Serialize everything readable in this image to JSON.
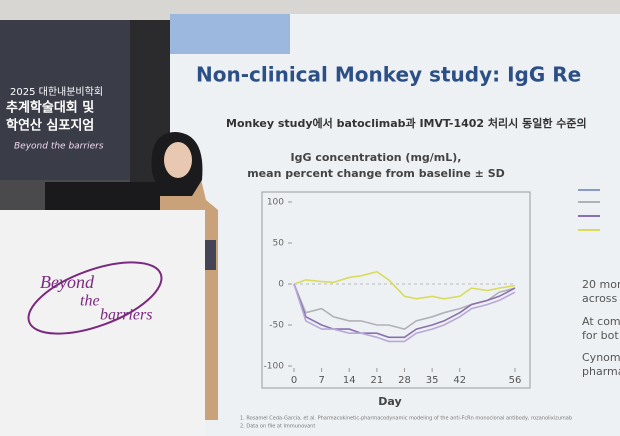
{
  "banner": {
    "lines": [
      "2025 대한내분비학회",
      "추계학술대회 및",
      "학연산 심포지엄"
    ],
    "tagline": "Beyond the barriers"
  },
  "podium": {
    "lines": [
      "Beyond",
      "the",
      "barriers"
    ]
  },
  "slide": {
    "title": "Non-clinical Monkey study: IgG Re",
    "subtitle": "Monkey study에서 batoclimab과 IMVT-1402 처리시 동일한 수준의",
    "chart": {
      "type": "line",
      "title": [
        "IgG concentration (mg/mL),",
        "mean percent change from baseline ± SD"
      ],
      "x_label": "Day",
      "x": [
        0,
        3,
        7,
        10,
        14,
        17,
        21,
        24,
        28,
        31,
        35,
        38,
        42,
        45,
        49,
        52,
        56
      ],
      "xlim": [
        0,
        56
      ],
      "xticks": [
        0,
        7,
        14,
        21,
        28,
        35,
        42,
        56
      ],
      "ylim": [
        -100,
        100
      ],
      "yticks": [
        -100,
        -50,
        0,
        50,
        100
      ],
      "series": [
        {
          "color": "#d8dc5a",
          "values": [
            0,
            5,
            3,
            2,
            8,
            10,
            15,
            5,
            -15,
            -18,
            -15,
            -18,
            -15,
            -5,
            -8,
            -5,
            -2
          ]
        },
        {
          "color": "#b0b0b8",
          "values": [
            0,
            -35,
            -30,
            -40,
            -45,
            -45,
            -50,
            -50,
            -55,
            -45,
            -40,
            -35,
            -30,
            -25,
            -20,
            -10,
            -5
          ]
        },
        {
          "color": "#8a70b0",
          "values": [
            0,
            -40,
            -50,
            -55,
            -55,
            -60,
            -60,
            -65,
            -65,
            -55,
            -50,
            -45,
            -35,
            -25,
            -20,
            -15,
            -5
          ]
        },
        {
          "color": "#b8a8d8",
          "values": [
            0,
            -45,
            -55,
            -55,
            -60,
            -60,
            -65,
            -70,
            -70,
            -60,
            -55,
            -50,
            -40,
            -30,
            -25,
            -20,
            -10
          ]
        }
      ]
    },
    "bullets": [
      "20 mon",
      "across",
      "At com",
      "for bot",
      "Cynom",
      "pharma"
    ],
    "footnotes": [
      "1. Rosamel Ceda-Garcia, et al. Pharmacokinetic-pharmacodynamic modeling of the anti-FcRn monoclonal antibody, rozanolixizumab",
      "2. Data on file at Immunovant"
    ]
  }
}
